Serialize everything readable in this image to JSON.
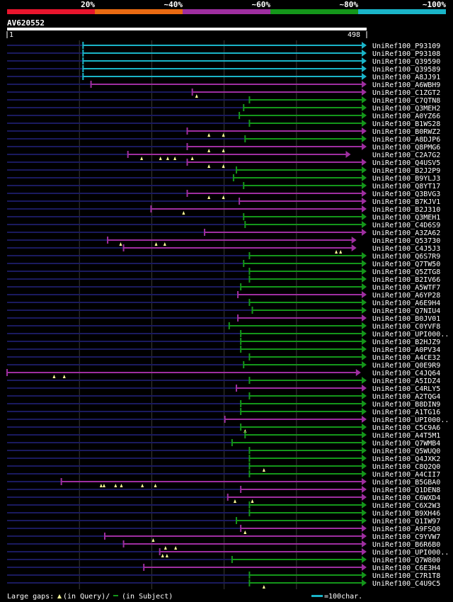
{
  "legend": {
    "segments": [
      {
        "label": "20%",
        "color": "#e8152d"
      },
      {
        "label": "~40%",
        "color": "#e96a12"
      },
      {
        "label": "~60%",
        "color": "#9e2ea0"
      },
      {
        "label": "~80%",
        "color": "#14961a"
      },
      {
        "label": "~100%",
        "color": "#1ab4c8"
      }
    ]
  },
  "query": {
    "name": "AV620552",
    "start": "1",
    "end": "498",
    "length": 498
  },
  "footer": {
    "gaps_prefix": "Large gaps:",
    "gaps_query": "(in Query)/",
    "gaps_subject": "(in Subject)",
    "scale": "=100char."
  },
  "colors": {
    "cyan": "#1ab4c8",
    "purple": "#9e2ea0",
    "green": "#14961a",
    "navy": "#1a1a5e",
    "marker": "#ffff99"
  },
  "chart_data": {
    "type": "alignment",
    "hits": [
      {
        "name": "UniRef100_P93109",
        "start": 106,
        "end": 498,
        "color": "cyan"
      },
      {
        "name": "UniRef100_P93108",
        "start": 106,
        "end": 498,
        "color": "cyan"
      },
      {
        "name": "UniRef100_Q39590",
        "start": 106,
        "end": 498,
        "color": "cyan"
      },
      {
        "name": "UniRef100_Q39589",
        "start": 106,
        "end": 498,
        "color": "cyan"
      },
      {
        "name": "UniRef100_A8JJ91",
        "start": 106,
        "end": 498,
        "color": "cyan"
      },
      {
        "name": "UniRef100_A6WBH9",
        "start": 117,
        "end": 498,
        "color": "purple"
      },
      {
        "name": "UniRef100_C1ZGT2",
        "start": 257,
        "end": 498,
        "color": "purple",
        "marks": [
          263
        ]
      },
      {
        "name": "UniRef100_C7QTN8",
        "start": 336,
        "end": 498,
        "color": "green"
      },
      {
        "name": "UniRef100_Q3MEH2",
        "start": 328,
        "end": 498,
        "color": "green"
      },
      {
        "name": "UniRef100_A0YZ66",
        "start": 322,
        "end": 498,
        "color": "green"
      },
      {
        "name": "UniRef100_B1WS28",
        "start": 336,
        "end": 498,
        "color": "green"
      },
      {
        "name": "UniRef100_B0RWZ2",
        "start": 250,
        "end": 498,
        "color": "purple",
        "marks": [
          280,
          300
        ]
      },
      {
        "name": "UniRef100_A8DJP6",
        "start": 330,
        "end": 498,
        "color": "green"
      },
      {
        "name": "UniRef100_Q8PMG6",
        "start": 250,
        "end": 498,
        "color": "purple",
        "marks": [
          280,
          300
        ]
      },
      {
        "name": "UniRef100_C2A7G2",
        "start": 168,
        "end": 476,
        "color": "purple",
        "marks": [
          187,
          213,
          223,
          233,
          257
        ]
      },
      {
        "name": "UniRef100_Q4USV5",
        "start": 250,
        "end": 498,
        "color": "purple",
        "marks": [
          280,
          300
        ]
      },
      {
        "name": "UniRef100_B2J2P9",
        "start": 318,
        "end": 498,
        "color": "green"
      },
      {
        "name": "UniRef100_B9YLJ3",
        "start": 314,
        "end": 498,
        "color": "green"
      },
      {
        "name": "UniRef100_Q8YT17",
        "start": 328,
        "end": 498,
        "color": "green"
      },
      {
        "name": "UniRef100_Q3BVG3",
        "start": 250,
        "end": 498,
        "color": "purple",
        "marks": [
          280,
          300
        ]
      },
      {
        "name": "UniRef100_B7KJV1",
        "start": 322,
        "end": 498,
        "color": "purple"
      },
      {
        "name": "UniRef100_B2J310",
        "start": 200,
        "end": 498,
        "color": "purple",
        "marks": [
          245
        ]
      },
      {
        "name": "UniRef100_Q3MEH1",
        "start": 328,
        "end": 498,
        "color": "green"
      },
      {
        "name": "UniRef100_C4D6S9",
        "start": 330,
        "end": 498,
        "color": "green"
      },
      {
        "name": "UniRef100_A3ZA62",
        "start": 274,
        "end": 498,
        "color": "purple"
      },
      {
        "name": "UniRef100_Q53730",
        "start": 140,
        "end": 484,
        "color": "purple",
        "marks": [
          158,
          207,
          219
        ]
      },
      {
        "name": "UniRef100_C4J5J3",
        "start": 162,
        "end": 484,
        "color": "purple",
        "marks": [
          456,
          462
        ]
      },
      {
        "name": "UniRef100_Q6S7R9",
        "start": 336,
        "end": 498,
        "color": "green"
      },
      {
        "name": "UniRef100_Q7TW50",
        "start": 328,
        "end": 498,
        "color": "green"
      },
      {
        "name": "UniRef100_Q5ZTG8",
        "start": 336,
        "end": 498,
        "color": "green"
      },
      {
        "name": "UniRef100_B2IV66",
        "start": 336,
        "end": 498,
        "color": "green"
      },
      {
        "name": "UniRef100_A5WTF7",
        "start": 324,
        "end": 498,
        "color": "green"
      },
      {
        "name": "UniRef100_A6YP28",
        "start": 320,
        "end": 498,
        "color": "purple"
      },
      {
        "name": "UniRef100_A6E9H4",
        "start": 336,
        "end": 498,
        "color": "green"
      },
      {
        "name": "UniRef100_Q7NIU4",
        "start": 340,
        "end": 498,
        "color": "green"
      },
      {
        "name": "UniRef100_B0JV01",
        "start": 320,
        "end": 498,
        "color": "purple"
      },
      {
        "name": "UniRef100_C0YVF8",
        "start": 308,
        "end": 498,
        "color": "green"
      },
      {
        "name": "UniRef100_UPI000..",
        "start": 324,
        "end": 498,
        "color": "green"
      },
      {
        "name": "UniRef100_B2HJZ9",
        "start": 324,
        "end": 498,
        "color": "green"
      },
      {
        "name": "UniRef100_A0PV34",
        "start": 324,
        "end": 498,
        "color": "green"
      },
      {
        "name": "UniRef100_A4CE32",
        "start": 336,
        "end": 498,
        "color": "green"
      },
      {
        "name": "UniRef100_Q0E9R9",
        "start": 328,
        "end": 498,
        "color": "green"
      },
      {
        "name": "UniRef100_C4JQ64",
        "start": 1,
        "end": 490,
        "color": "purple",
        "marks": [
          66,
          80
        ]
      },
      {
        "name": "UniRef100_A5IDZ4",
        "start": 336,
        "end": 498,
        "color": "green"
      },
      {
        "name": "UniRef100_C4RLY5",
        "start": 318,
        "end": 498,
        "color": "purple"
      },
      {
        "name": "UniRef100_A2TQG4",
        "start": 336,
        "end": 498,
        "color": "green"
      },
      {
        "name": "UniRef100_B8DIN9",
        "start": 324,
        "end": 498,
        "color": "green"
      },
      {
        "name": "UniRef100_A1TG16",
        "start": 324,
        "end": 498,
        "color": "green"
      },
      {
        "name": "UniRef100_UPI000..",
        "start": 302,
        "end": 498,
        "color": "purple"
      },
      {
        "name": "UniRef100_C5C9A6",
        "start": 324,
        "end": 498,
        "color": "green",
        "marks": [
          330
        ]
      },
      {
        "name": "UniRef100_A4T5M1",
        "start": 330,
        "end": 498,
        "color": "green"
      },
      {
        "name": "UniRef100_Q7WMB4",
        "start": 312,
        "end": 498,
        "color": "green"
      },
      {
        "name": "UniRef100_Q5WUQ0",
        "start": 336,
        "end": 498,
        "color": "green"
      },
      {
        "name": "UniRef100_Q4JXK2",
        "start": 336,
        "end": 498,
        "color": "green"
      },
      {
        "name": "UniRef100_C8Q2Q0",
        "start": 336,
        "end": 498,
        "color": "green",
        "marks": [
          356
        ]
      },
      {
        "name": "UniRef100_A4CII7",
        "start": 336,
        "end": 498,
        "color": "green"
      },
      {
        "name": "UniRef100_B5GBA0",
        "start": 76,
        "end": 498,
        "color": "purple",
        "marks": [
          131,
          135,
          151,
          159,
          188,
          206
        ]
      },
      {
        "name": "UniRef100_Q1DEN8",
        "start": 324,
        "end": 498,
        "color": "purple"
      },
      {
        "name": "UniRef100_C6WXD4",
        "start": 306,
        "end": 498,
        "color": "purple",
        "marks": [
          316,
          340
        ]
      },
      {
        "name": "UniRef100_C6X2W3",
        "start": 336,
        "end": 498,
        "color": "green"
      },
      {
        "name": "UniRef100_B9XH46",
        "start": 336,
        "end": 498,
        "color": "green"
      },
      {
        "name": "UniRef100_Q1IW97",
        "start": 318,
        "end": 498,
        "color": "green"
      },
      {
        "name": "UniRef100_A9FSQ0",
        "start": 324,
        "end": 498,
        "color": "purple",
        "marks": [
          330
        ]
      },
      {
        "name": "UniRef100_C9YVW7",
        "start": 136,
        "end": 498,
        "color": "purple",
        "marks": [
          203
        ]
      },
      {
        "name": "UniRef100_B6R6B0",
        "start": 162,
        "end": 498,
        "color": "purple",
        "marks": [
          220,
          234
        ]
      },
      {
        "name": "UniRef100_UPI000..",
        "start": 212,
        "end": 498,
        "color": "purple",
        "marks": [
          216,
          222
        ]
      },
      {
        "name": "UniRef100_Q7W800",
        "start": 312,
        "end": 498,
        "color": "green"
      },
      {
        "name": "UniRef100_C6E3H4",
        "start": 190,
        "end": 498,
        "color": "purple"
      },
      {
        "name": "UniRef100_C7R1T8",
        "start": 336,
        "end": 498,
        "color": "green"
      },
      {
        "name": "UniRef100_C4U9C5",
        "start": 336,
        "end": 498,
        "color": "green",
        "marks": [
          356
        ]
      }
    ]
  }
}
